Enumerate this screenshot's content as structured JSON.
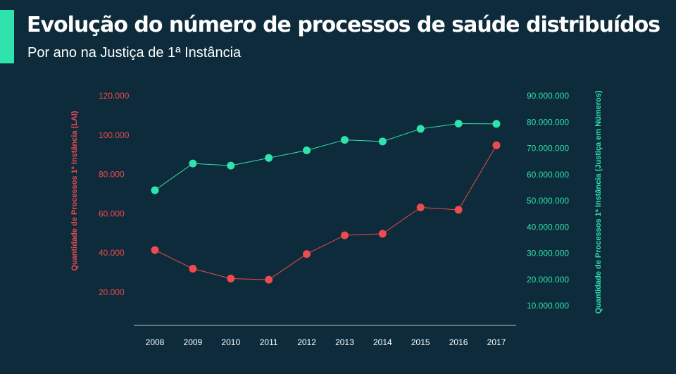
{
  "header": {
    "title": "Evolução do número de processos de saúde distribuídos",
    "subtitle": "Por ano na Justiça de 1ª Instância"
  },
  "colors": {
    "background": "#0d2b3a",
    "accent": "#2fe3ad",
    "left_series": "#ef4a4f",
    "right_series": "#2fe3ad",
    "axis_line": "#b9c6cc",
    "x_tick_text": "#ffffff"
  },
  "chart_data": {
    "type": "line",
    "title": "Evolução do número de processos de saúde distribuídos",
    "subtitle": "Por ano na Justiça de 1ª Instância",
    "x": [
      "2008",
      "2009",
      "2010",
      "2011",
      "2012",
      "2013",
      "2014",
      "2015",
      "2016",
      "2017"
    ],
    "left_axis": {
      "label": "Quantidade de Processos 1ª Instância (LAI)",
      "range": [
        10000,
        120000
      ],
      "ticks": [
        "20.000",
        "40.000",
        "60.000",
        "80.000",
        "100.000",
        "120.000"
      ],
      "tick_values": [
        20000,
        40000,
        60000,
        80000,
        100000,
        120000
      ]
    },
    "right_axis": {
      "label": "Quantidade de Processos 1ª Instância (Justiça em Números)",
      "range": [
        7500000,
        90000000
      ],
      "ticks": [
        "10.000.000",
        "20.000.000",
        "30.000.000",
        "40.000.000",
        "50.000.000",
        "60.000.000",
        "70.000.000",
        "80.000.000",
        "90.000.000"
      ],
      "tick_values": [
        10000000,
        20000000,
        30000000,
        40000000,
        50000000,
        60000000,
        70000000,
        80000000,
        90000000
      ]
    },
    "series": [
      {
        "axis": "left",
        "color": "#ef4a4f",
        "values": [
          41500,
          32000,
          27000,
          26400,
          39500,
          49000,
          49800,
          63200,
          62000,
          94800
        ]
      },
      {
        "axis": "right",
        "color": "#2fe3ad",
        "values": [
          54000000,
          64200000,
          63400000,
          66300000,
          69200000,
          73200000,
          72600000,
          77400000,
          79400000,
          79300000
        ]
      }
    ],
    "grid": false,
    "legend": "none"
  }
}
